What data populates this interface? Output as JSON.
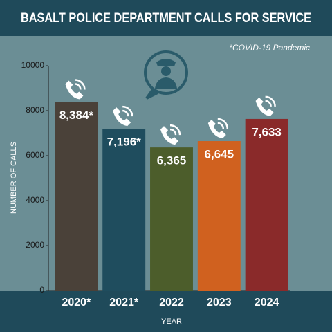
{
  "chart_data": {
    "type": "bar",
    "title": "BASALT POLICE DEPARTMENT CALLS FOR SERVICE",
    "annotation": "*COVID-19 Pandemic",
    "x_label": "YEAR",
    "y_label": "NUMBER OF CALLS",
    "categories": [
      "2020*",
      "2021*",
      "2022",
      "2023",
      "2024"
    ],
    "values": [
      8384,
      7196,
      6365,
      6645,
      7633
    ],
    "value_labels": [
      "8,384*",
      "7,196*",
      "6,365",
      "6,645",
      "7,633"
    ],
    "colors": [
      "#4a4139",
      "#1f4d5e",
      "#4c5d2b",
      "#d0611f",
      "#8a2a2a"
    ],
    "ylim": [
      0,
      10000
    ],
    "yticks": [
      0,
      2000,
      4000,
      6000,
      8000,
      10000
    ],
    "grid": false
  }
}
